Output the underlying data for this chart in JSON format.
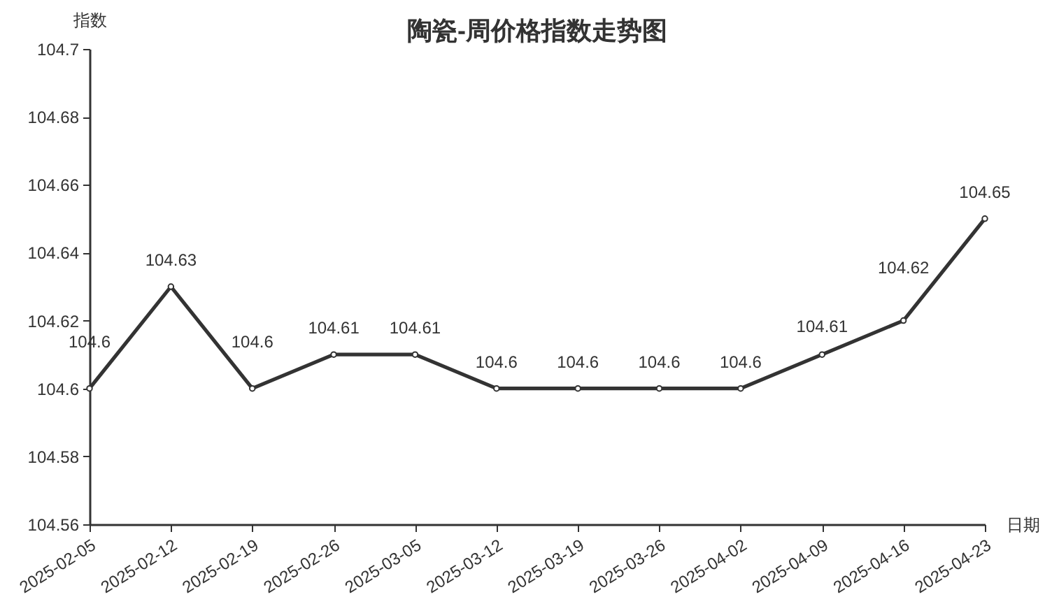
{
  "chart_data": {
    "type": "line",
    "title": "陶瓷-周价格指数走势图",
    "xlabel": "日期",
    "ylabel": "指数",
    "categories": [
      "2025-02-05",
      "2025-02-12",
      "2025-02-19",
      "2025-02-26",
      "2025-03-05",
      "2025-03-12",
      "2025-03-19",
      "2025-03-26",
      "2025-04-02",
      "2025-04-09",
      "2025-04-16",
      "2025-04-23"
    ],
    "series": [
      {
        "color": "#333333",
        "values": [
          104.6,
          104.63,
          104.6,
          104.61,
          104.61,
          104.6,
          104.6,
          104.6,
          104.6,
          104.61,
          104.62,
          104.65
        ]
      }
    ],
    "ylim": [
      104.56,
      104.7
    ],
    "yticks": [
      104.56,
      104.58,
      104.6,
      104.62,
      104.64,
      104.66,
      104.68,
      104.7
    ],
    "marker": "circle",
    "line_style": "solid",
    "data_labels": true
  }
}
